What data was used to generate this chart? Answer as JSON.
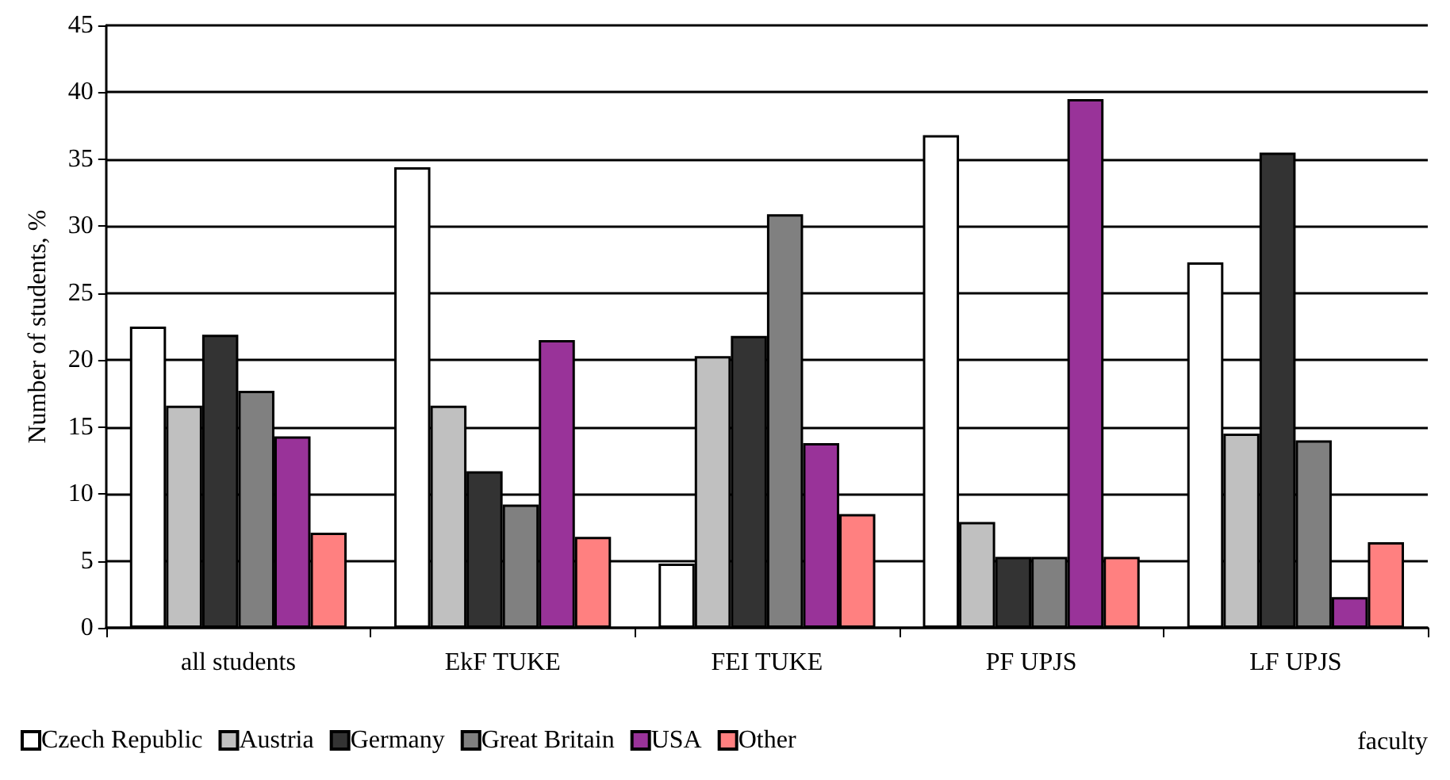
{
  "chart_data": {
    "type": "bar",
    "ylabel": "Number of students, %",
    "xlabel": "faculty",
    "categories": [
      "all students",
      "EkF TUKE",
      "FEI TUKE",
      "PF UPJS",
      "LF UPJS"
    ],
    "series": [
      {
        "name": "Czech Republic",
        "color": "#ffffff",
        "values": [
          22.5,
          34.4,
          4.8,
          36.8,
          27.3
        ]
      },
      {
        "name": "Austria",
        "color": "#c0c0c0",
        "values": [
          16.6,
          16.6,
          20.3,
          7.9,
          14.5
        ]
      },
      {
        "name": "Germany",
        "color": "#333333",
        "values": [
          21.9,
          11.7,
          21.8,
          5.3,
          35.5
        ]
      },
      {
        "name": "Great Britain",
        "color": "#808080",
        "values": [
          17.7,
          9.2,
          30.9,
          5.3,
          14.0
        ]
      },
      {
        "name": "USA",
        "color": "#993399",
        "values": [
          14.3,
          21.5,
          13.8,
          39.5,
          2.3
        ]
      },
      {
        "name": "Other",
        "color": "#ff8080",
        "values": [
          7.1,
          6.8,
          8.5,
          5.3,
          6.4
        ]
      }
    ],
    "ylim": [
      0,
      45
    ],
    "yticks": [
      0,
      5,
      10,
      15,
      20,
      25,
      30,
      35,
      40,
      45
    ],
    "grid": "y",
    "legend": "bottom left"
  }
}
